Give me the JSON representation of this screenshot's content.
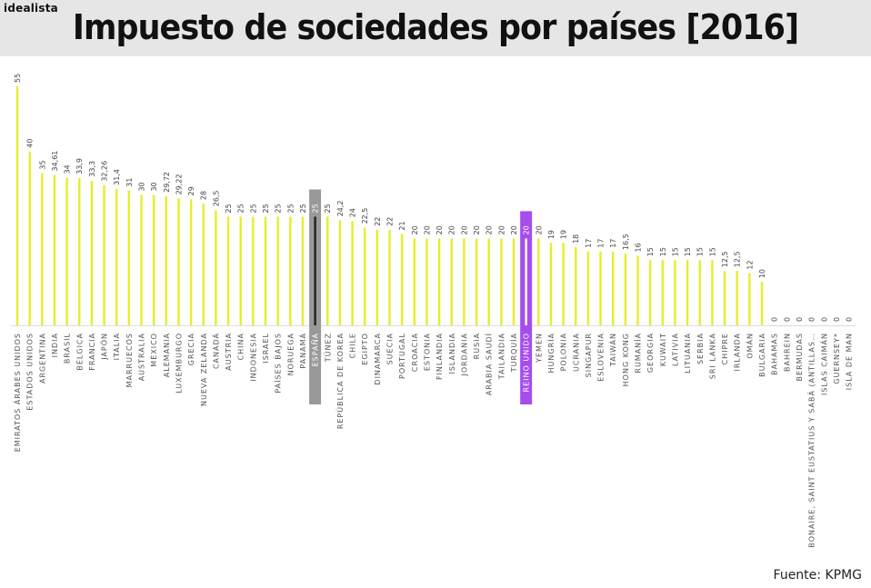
{
  "brand": "idealista",
  "title": "Impuesto de sociedades por países [2016]",
  "source": "Fuente: KPMG",
  "colors": {
    "bar": "#e6ee2a",
    "highlight_spain": "#999999",
    "highlight_uk": "#a64ded",
    "header_bg": "#e6e6e6"
  },
  "chart_data": {
    "type": "bar",
    "title": "Impuesto de sociedades por países [2016]",
    "xlabel": "",
    "ylabel": "",
    "ylim": [
      0,
      55
    ],
    "grid": false,
    "categories": [
      "EMIRATOS ÁRABES UNIDOS",
      "ESTADOS UNIDOS",
      "ARGENTINA",
      "INDIA",
      "BRASIL",
      "BÉLGICA",
      "FRANCIA",
      "JAPÓN",
      "ITALIA",
      "MARRUECOS",
      "AUSTRALIA",
      "MÉXICO",
      "ALEMANIA",
      "LUXEMBURGO",
      "GRECIA",
      "NUEVA ZELANDA",
      "CANADÁ",
      "AUSTRIA",
      "CHINA",
      "INDONESIA",
      "ISRAEL",
      "PAÍSES BAJOS",
      "NORUEGA",
      "PANAMÁ",
      "ESPAÑA",
      "TÚNEZ",
      "REPÚBLICA DE KOREA",
      "CHILE",
      "EGIPTO",
      "DINAMARCA",
      "SUECIA",
      "PORTUGAL",
      "CROACIA",
      "ESTONIA",
      "FINLANDIA",
      "ISLANDIA",
      "JORDANIA",
      "RUSIA",
      "ARABIA SAUDÍ",
      "TAILANDIA",
      "TURQUÍA",
      "REINO UNIDO",
      "YEMEN",
      "HUNGRÍA",
      "POLONIA",
      "UCRANIA",
      "SINGAPUR",
      "ESLOVENIA",
      "TAIWÁN",
      "HONG KONG",
      "RUMANÍA",
      "GEORGIA",
      "KUWAIT",
      "LATIVIA",
      "LITUANIA",
      "SERBIA",
      "SRI LANKA",
      "CHIPRE",
      "IRLANDA",
      "OMÁN",
      "BULGARIA",
      "BAHAMAS",
      "BAHREIN",
      "BERMUDAS",
      "BONAIRE, SAINT EUSTATIUS Y SABÁ (ANTILLAS…",
      "ISLAS CAIMÁN",
      "GUERNSEY*",
      "ISLA DE MAN"
    ],
    "values": [
      55,
      40,
      35,
      34.61,
      34,
      33.9,
      33.3,
      32.26,
      31.4,
      31,
      30,
      30,
      29.72,
      29.22,
      29,
      28,
      26.5,
      25,
      25,
      25,
      25,
      25,
      25,
      25,
      25,
      25,
      24.2,
      24,
      22.5,
      22,
      22,
      21,
      20,
      20,
      20,
      20,
      20,
      20,
      20,
      20,
      20,
      20,
      20,
      19,
      19,
      18,
      17,
      17,
      17,
      16.5,
      16,
      15,
      15,
      15,
      15,
      15,
      15,
      12.5,
      12.5,
      12,
      10,
      0,
      0,
      0,
      0,
      0,
      0,
      0
    ],
    "labels": [
      "55",
      "40",
      "35",
      "34,61",
      "34",
      "33,9",
      "33,3",
      "32,26",
      "31,4",
      "31",
      "30",
      "30",
      "29,72",
      "29,22",
      "29",
      "28",
      "26,5",
      "25",
      "25",
      "25",
      "25",
      "25",
      "25",
      "25",
      "25",
      "25",
      "24,2",
      "24",
      "22,5",
      "22",
      "22",
      "21",
      "20",
      "20",
      "20",
      "20",
      "20",
      "20",
      "20",
      "20",
      "20",
      "20",
      "20",
      "19",
      "19",
      "18",
      "17",
      "17",
      "17",
      "16,5",
      "16",
      "15",
      "15",
      "15",
      "15",
      "15",
      "15",
      "12,5",
      "12,5",
      "12",
      "10",
      "0",
      "0",
      "0",
      "0",
      "0",
      "0",
      "0"
    ],
    "highlights": {
      "ESPAÑA": "#999999",
      "REINO UNIDO": "#a64ded"
    }
  }
}
